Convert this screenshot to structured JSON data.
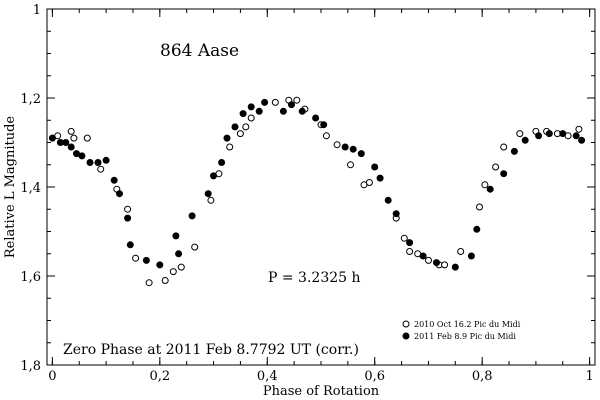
{
  "chart_data": {
    "type": "scatter",
    "title": "864 Aase",
    "xlabel": "Phase of Rotation",
    "ylabel": "Relative L Magnitude",
    "xlim": [
      -0.01,
      1.01
    ],
    "ylim": [
      1.8,
      1.0
    ],
    "y_inverted": true,
    "xticks": [
      {
        "value": 0,
        "label": "0"
      },
      {
        "value": 0.2,
        "label": "0,2"
      },
      {
        "value": 0.4,
        "label": "0,4"
      },
      {
        "value": 0.6,
        "label": "0,6"
      },
      {
        "value": 0.8,
        "label": "0,8"
      },
      {
        "value": 1.0,
        "label": "1"
      }
    ],
    "yticks": [
      {
        "value": 1.0,
        "label": "1"
      },
      {
        "value": 1.2,
        "label": "1,2"
      },
      {
        "value": 1.4,
        "label": "1,4"
      },
      {
        "value": 1.6,
        "label": "1,6"
      },
      {
        "value": 1.8,
        "label": "1,8"
      }
    ],
    "annotations": {
      "period": "P = 3.2325 h",
      "zero_phase": "Zero Phase at 2011 Feb 8.7792 UT (corr.)"
    },
    "legend_position": "bottom-right",
    "series": [
      {
        "name": "2010 Oct 16.2 Pic du Midi",
        "marker": "open-circle",
        "x": [
          0.01,
          0.035,
          0.04,
          0.065,
          0.09,
          0.12,
          0.14,
          0.155,
          0.18,
          0.21,
          0.225,
          0.24,
          0.265,
          0.295,
          0.31,
          0.33,
          0.35,
          0.36,
          0.37,
          0.415,
          0.44,
          0.455,
          0.47,
          0.5,
          0.51,
          0.53,
          0.555,
          0.58,
          0.59,
          0.64,
          0.655,
          0.665,
          0.68,
          0.7,
          0.72,
          0.73,
          0.76,
          0.795,
          0.805,
          0.825,
          0.84,
          0.87,
          0.9,
          0.92,
          0.94,
          0.96,
          0.98
        ],
        "y": [
          1.285,
          1.275,
          1.29,
          1.29,
          1.36,
          1.405,
          1.45,
          1.56,
          1.615,
          1.61,
          1.59,
          1.58,
          1.535,
          1.43,
          1.37,
          1.31,
          1.28,
          1.265,
          1.245,
          1.21,
          1.205,
          1.205,
          1.225,
          1.26,
          1.285,
          1.305,
          1.35,
          1.395,
          1.39,
          1.47,
          1.515,
          1.545,
          1.55,
          1.565,
          1.575,
          1.575,
          1.545,
          1.445,
          1.395,
          1.355,
          1.31,
          1.28,
          1.275,
          1.275,
          1.28,
          1.285,
          1.27
        ]
      },
      {
        "name": "2011 Feb 8.9 Pic du Midi",
        "marker": "filled-circle",
        "x": [
          0.0,
          0.015,
          0.025,
          0.035,
          0.045,
          0.055,
          0.07,
          0.085,
          0.1,
          0.115,
          0.125,
          0.14,
          0.145,
          0.175,
          0.2,
          0.23,
          0.235,
          0.26,
          0.29,
          0.3,
          0.315,
          0.325,
          0.34,
          0.355,
          0.37,
          0.385,
          0.395,
          0.43,
          0.445,
          0.465,
          0.49,
          0.505,
          0.545,
          0.56,
          0.575,
          0.6,
          0.61,
          0.625,
          0.64,
          0.665,
          0.69,
          0.715,
          0.75,
          0.78,
          0.79,
          0.815,
          0.84,
          0.86,
          0.88,
          0.905,
          0.925,
          0.95,
          0.975,
          0.985
        ],
        "y": [
          1.29,
          1.3,
          1.3,
          1.31,
          1.325,
          1.33,
          1.345,
          1.345,
          1.34,
          1.385,
          1.415,
          1.47,
          1.53,
          1.565,
          1.575,
          1.51,
          1.55,
          1.465,
          1.415,
          1.375,
          1.345,
          1.29,
          1.265,
          1.235,
          1.22,
          1.23,
          1.21,
          1.23,
          1.215,
          1.23,
          1.245,
          1.26,
          1.31,
          1.315,
          1.325,
          1.355,
          1.38,
          1.43,
          1.46,
          1.525,
          1.555,
          1.57,
          1.58,
          1.555,
          1.495,
          1.405,
          1.37,
          1.32,
          1.295,
          1.285,
          1.28,
          1.28,
          1.285,
          1.295
        ]
      }
    ]
  }
}
